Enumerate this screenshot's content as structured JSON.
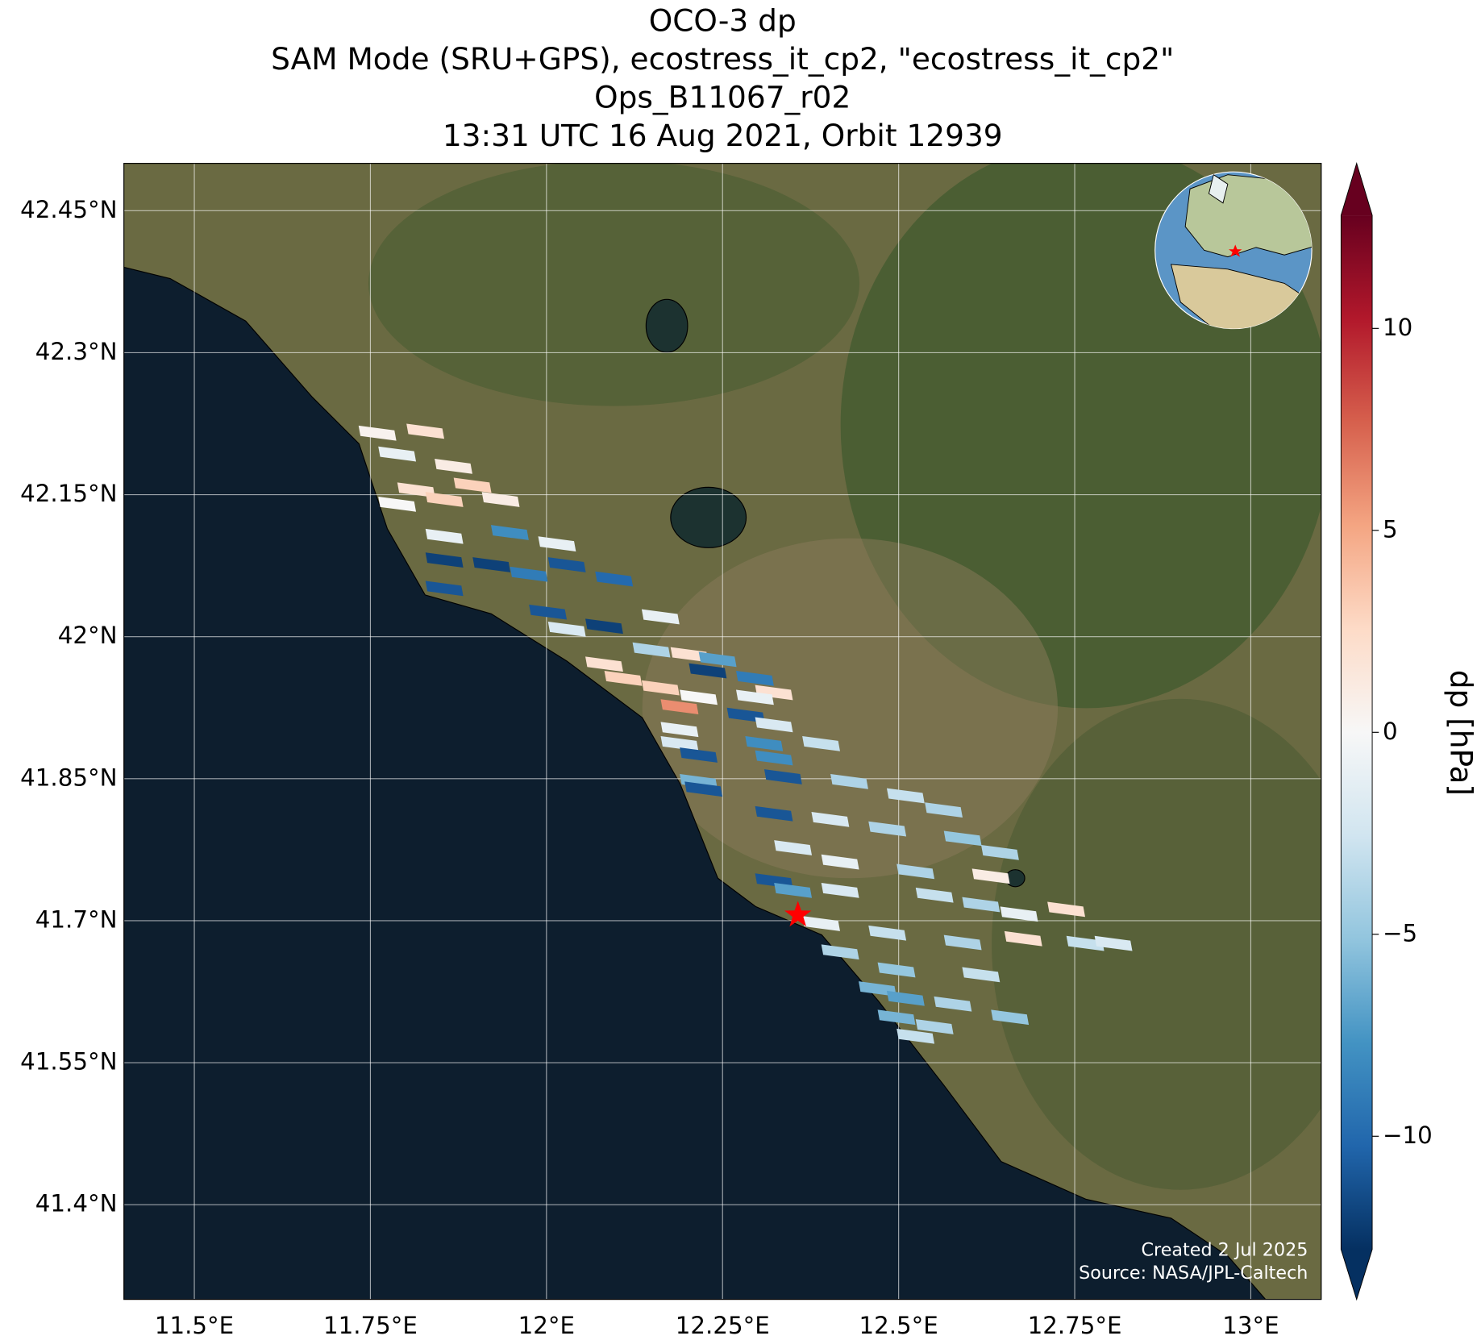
{
  "chart_data": {
    "type": "map",
    "title": [
      "OCO-3 dp",
      "SAM Mode (SRU+GPS), ecostress_it_cp2, \"ecostress_it_cp2\"",
      "Ops_B11067_r02",
      "13:31 UTC 16 Aug 2021, Orbit 12939"
    ],
    "xlim": [
      11.4,
      13.1
    ],
    "ylim": [
      41.3,
      42.5
    ],
    "xticks": [
      {
        "value": 11.5,
        "label": "11.5°E"
      },
      {
        "value": 11.75,
        "label": "11.75°E"
      },
      {
        "value": 12,
        "label": "12°E"
      },
      {
        "value": 12.25,
        "label": "12.25°E"
      },
      {
        "value": 12.5,
        "label": "12.5°E"
      },
      {
        "value": 12.75,
        "label": "12.75°E"
      },
      {
        "value": 13,
        "label": "13°E"
      }
    ],
    "yticks": [
      {
        "value": 42.45,
        "label": "42.45°N"
      },
      {
        "value": 42.3,
        "label": "42.3°N"
      },
      {
        "value": 42.15,
        "label": "42.15°N"
      },
      {
        "value": 42,
        "label": "42°N"
      },
      {
        "value": 41.85,
        "label": "41.85°N"
      },
      {
        "value": 41.7,
        "label": "41.7°N"
      },
      {
        "value": 41.55,
        "label": "41.55°N"
      },
      {
        "value": 41.4,
        "label": "41.4°N"
      }
    ],
    "grid": true,
    "colormap": "RdBu_r",
    "colorbar": {
      "label": "dp [hPa]",
      "clim": [
        -12.8,
        12.8
      ],
      "ticks": [
        {
          "value": -10,
          "label": "−10"
        },
        {
          "value": -5,
          "label": "−5"
        },
        0,
        5,
        10
      ]
    },
    "target": {
      "lon": 12.357,
      "lat": 41.706,
      "color": "#ff0000"
    },
    "soundings": {
      "lon": [
        11.76,
        11.828,
        11.788,
        11.868,
        11.895,
        11.815,
        11.855,
        11.935,
        11.788,
        11.855,
        11.948,
        12.015,
        11.855,
        11.922,
        12.029,
        12.096,
        11.855,
        11.975,
        12.002,
        12.082,
        12.029,
        12.162,
        12.149,
        12.203,
        12.243,
        12.229,
        12.082,
        12.109,
        12.162,
        12.189,
        12.216,
        12.189,
        12.189,
        12.216,
        12.216,
        12.223,
        12.296,
        12.323,
        12.296,
        12.283,
        12.323,
        12.39,
        12.309,
        12.323,
        12.336,
        12.43,
        12.51,
        12.564,
        12.323,
        12.403,
        12.484,
        12.591,
        12.644,
        12.35,
        12.417,
        12.524,
        12.323,
        12.35,
        12.417,
        12.631,
        12.551,
        12.617,
        12.671,
        12.738,
        12.677,
        12.765,
        12.805,
        12.39,
        12.484,
        12.591,
        12.417,
        12.497,
        12.617,
        12.47,
        12.51,
        12.577,
        12.658,
        12.497,
        12.551,
        12.524
      ],
      "lat": [
        42.215,
        42.217,
        42.193,
        42.18,
        42.16,
        42.155,
        42.145,
        42.145,
        42.14,
        42.106,
        42.11,
        42.098,
        42.081,
        42.076,
        42.076,
        42.061,
        42.051,
        42.066,
        42.026,
        42.011,
        42.008,
        42.021,
        41.986,
        41.981,
        41.976,
        41.964,
        41.971,
        41.956,
        41.946,
        41.926,
        41.936,
        41.902,
        41.887,
        41.875,
        41.847,
        41.839,
        41.956,
        41.941,
        41.936,
        41.917,
        41.907,
        41.887,
        41.887,
        41.872,
        41.852,
        41.847,
        41.832,
        41.817,
        41.813,
        41.807,
        41.797,
        41.787,
        41.772,
        41.777,
        41.762,
        41.752,
        41.742,
        41.732,
        41.732,
        41.747,
        41.727,
        41.717,
        41.707,
        41.712,
        41.681,
        41.676,
        41.676,
        41.697,
        41.687,
        41.677,
        41.667,
        41.648,
        41.643,
        41.628,
        41.618,
        41.612,
        41.598,
        41.598,
        41.588,
        41.578
      ],
      "values": [
        0.5,
        2,
        -1,
        1,
        3,
        2,
        3,
        1,
        0,
        -1,
        -8,
        -1,
        -12,
        -12,
        -11,
        -10,
        -11,
        -9,
        -11,
        -12,
        -2,
        -1,
        -4,
        2,
        -7,
        -12,
        2,
        3,
        3,
        6,
        0,
        -1,
        -2,
        -11,
        -6,
        -11,
        -9,
        2,
        -1,
        -11,
        -2,
        -3,
        -8,
        -8,
        -11,
        -4,
        -3,
        -4,
        -11,
        -2,
        -4,
        -5,
        -4,
        -2,
        -1,
        -4,
        -11,
        -7,
        -2,
        1,
        -3,
        -4,
        -1,
        2,
        2,
        -3,
        -2,
        -1,
        -3,
        -4,
        -4,
        -5,
        -3,
        -6,
        -7,
        -4,
        -5,
        -6,
        -4,
        -3
      ]
    },
    "credits": [
      "Created 2 Jul 2025",
      "Source: NASA/JPL-Caltech"
    ]
  }
}
